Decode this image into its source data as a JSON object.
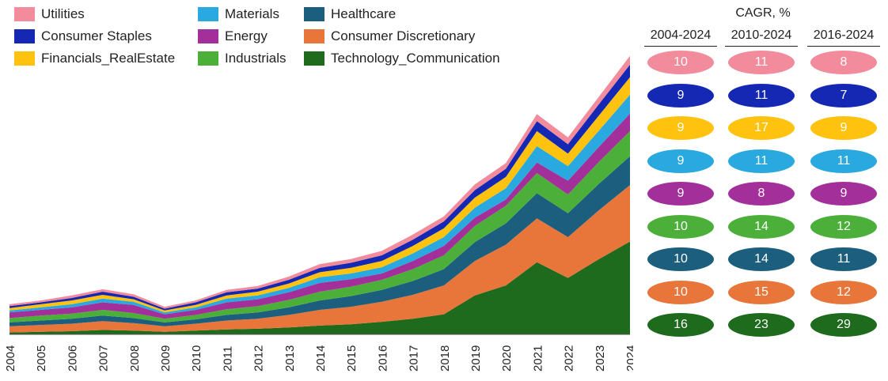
{
  "chart_data": {
    "type": "area",
    "stacked": true,
    "x": [
      "2004",
      "2005",
      "2006",
      "2007",
      "2008",
      "2009",
      "2010",
      "2011",
      "2012",
      "2013",
      "2014",
      "2015",
      "2016",
      "2017",
      "2018",
      "2019",
      "2020",
      "2021",
      "2022",
      "2023",
      "2024"
    ],
    "series": [
      {
        "name": "Technology_Communication",
        "color": "#1e6b1e",
        "values": [
          3,
          4,
          5,
          7,
          6,
          4,
          6,
          8,
          9,
          11,
          14,
          16,
          20,
          25,
          32,
          62,
          78,
          115,
          90,
          120,
          148
        ]
      },
      {
        "name": "Consumer Discretionary",
        "color": "#e8763a",
        "values": [
          10,
          11,
          12,
          14,
          12,
          9,
          11,
          14,
          16,
          20,
          25,
          28,
          32,
          38,
          46,
          55,
          65,
          70,
          65,
          78,
          90
        ]
      },
      {
        "name": "Healthcare",
        "color": "#1b5e7e",
        "values": [
          6,
          7,
          8,
          9,
          8,
          6,
          7,
          9,
          10,
          12,
          15,
          17,
          19,
          22,
          26,
          30,
          34,
          40,
          38,
          42,
          46
        ]
      },
      {
        "name": "Industrials",
        "color": "#4caf3a",
        "values": [
          7,
          8,
          8,
          9,
          8,
          6,
          7,
          9,
          10,
          12,
          14,
          15,
          16,
          19,
          22,
          26,
          28,
          32,
          30,
          35,
          40
        ]
      },
      {
        "name": "Energy",
        "color": "#a3309a",
        "values": [
          9,
          9,
          10,
          12,
          13,
          7,
          8,
          11,
          11,
          12,
          14,
          12,
          10,
          13,
          15,
          13,
          10,
          17,
          22,
          24,
          28
        ]
      },
      {
        "name": "Materials",
        "color": "#29a9df",
        "values": [
          3,
          4,
          5,
          6,
          5,
          3,
          4,
          6,
          6,
          7,
          9,
          9,
          10,
          12,
          14,
          16,
          18,
          26,
          23,
          26,
          30
        ]
      },
      {
        "name": "Financials_RealEstate",
        "color": "#ffc20e",
        "values": [
          4,
          5,
          6,
          6,
          4,
          3,
          4,
          5,
          6,
          7,
          8,
          9,
          10,
          12,
          14,
          16,
          18,
          24,
          20,
          24,
          28
        ]
      },
      {
        "name": "Consumer Staples",
        "color": "#1428b4",
        "values": [
          3,
          3,
          4,
          5,
          4,
          3,
          4,
          5,
          5,
          6,
          7,
          8,
          9,
          10,
          11,
          12,
          13,
          16,
          15,
          18,
          20
        ]
      },
      {
        "name": "Utilities",
        "color": "#f28b9b",
        "values": [
          3,
          3,
          4,
          4,
          4,
          3,
          3,
          4,
          4,
          5,
          6,
          6,
          7,
          8,
          8,
          9,
          9,
          11,
          11,
          12,
          14
        ]
      }
    ],
    "ylim": [
      0,
      470
    ],
    "legend_rows": [
      [
        "Utilities",
        "Materials",
        "Healthcare"
      ],
      [
        "Consumer Staples",
        "Energy",
        "Consumer Discretionary"
      ],
      [
        "Financials_RealEstate",
        "Industrials",
        "Technology_Communication"
      ]
    ],
    "legend_placement": "top-left",
    "grid": false
  },
  "cagr": {
    "title": "CAGR, %",
    "columns": [
      "2004-2024",
      "2010-2024",
      "2016-2024"
    ],
    "rows": [
      {
        "sector": "Utilities",
        "color": "#f28b9b",
        "values": [
          "10",
          "11",
          "8"
        ]
      },
      {
        "sector": "Consumer Staples",
        "color": "#1428b4",
        "values": [
          "9",
          "11",
          "7"
        ]
      },
      {
        "sector": "Financials_RealEstate",
        "color": "#ffc20e",
        "values": [
          "9",
          "17",
          "9"
        ]
      },
      {
        "sector": "Materials",
        "color": "#29a9df",
        "values": [
          "9",
          "11",
          "11"
        ]
      },
      {
        "sector": "Energy",
        "color": "#a3309a",
        "values": [
          "9",
          "8",
          "9"
        ]
      },
      {
        "sector": "Industrials",
        "color": "#4caf3a",
        "values": [
          "10",
          "14",
          "12"
        ]
      },
      {
        "sector": "Healthcare",
        "color": "#1b5e7e",
        "values": [
          "10",
          "14",
          "11"
        ]
      },
      {
        "sector": "Consumer Discretionary",
        "color": "#e8763a",
        "values": [
          "10",
          "15",
          "12"
        ]
      },
      {
        "sector": "Technology_Communication",
        "color": "#1e6b1e",
        "values": [
          "16",
          "23",
          "29"
        ]
      }
    ]
  }
}
